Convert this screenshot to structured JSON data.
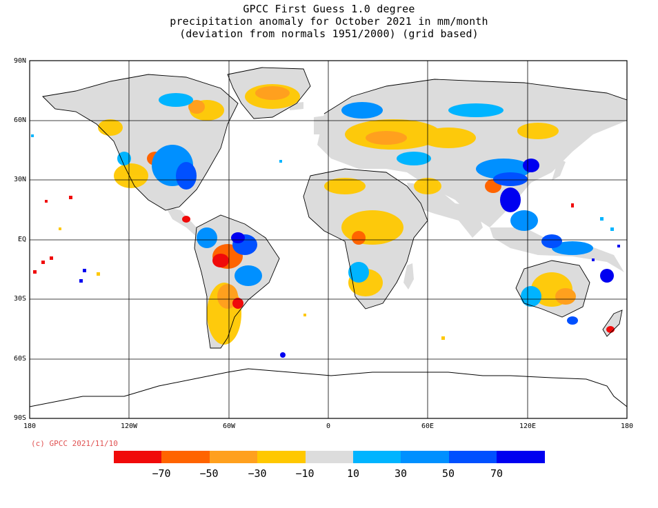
{
  "title": {
    "line1": "GPCC First Guess 1.0 degree",
    "line2": "precipitation anomaly for October  2021 in mm/month",
    "line3": "(deviation from normals 1951/2000) (grid based)"
  },
  "lat_labels": [
    "90N",
    "60N",
    "30N",
    "EQ",
    "30S",
    "60S",
    "90S"
  ],
  "lon_labels": [
    "180",
    "120W",
    "60W",
    "0",
    "60E",
    "120E",
    "180"
  ],
  "copyright": "(c) GPCC 2021/11/10",
  "legend": {
    "colors": [
      "#f00a0a",
      "#ff6400",
      "#ffa01e",
      "#ffc800",
      "#dcdcdc",
      "#00b4ff",
      "#0090ff",
      "#0050ff",
      "#0000f0"
    ],
    "labels": [
      "−70",
      "−50",
      "−30",
      "−10",
      "10",
      "30",
      "50",
      "70"
    ]
  },
  "colors": {
    "land_neutral": "#dcdcdc",
    "coast": "#000000",
    "grid": "#000000"
  }
}
